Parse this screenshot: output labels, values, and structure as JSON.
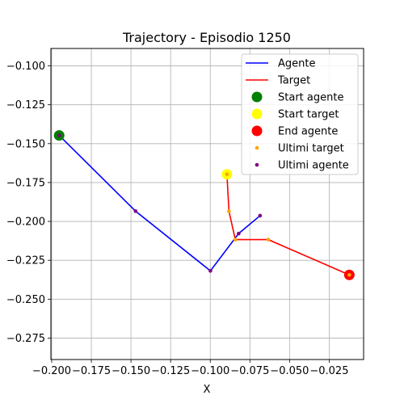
{
  "chart_data": {
    "type": "line",
    "title": "Trajectory - Episodio 1250",
    "xlabel": "X",
    "ylabel": "",
    "xlim": [
      -0.2005,
      -0.0033
    ],
    "ylim": [
      -0.2888,
      -0.0888
    ],
    "xticks": [
      -0.2,
      -0.175,
      -0.15,
      -0.125,
      -0.1,
      -0.075,
      -0.05,
      -0.025
    ],
    "yticks": [
      -0.1,
      -0.125,
      -0.15,
      -0.175,
      -0.2,
      -0.225,
      -0.25,
      -0.275
    ],
    "xtick_labels": [
      "−0.200",
      "−0.175",
      "−0.150",
      "−0.125",
      "−0.100",
      "−0.075",
      "−0.050",
      "−0.025"
    ],
    "ytick_labels": [
      "−0.100",
      "−0.125",
      "−0.150",
      "−0.175",
      "−0.200",
      "−0.225",
      "−0.250",
      "−0.275"
    ],
    "grid": true,
    "legend_position": "top-right",
    "series": [
      {
        "name": "Agente",
        "kind": "line",
        "color": "#0000ff",
        "x": [
          -0.1953,
          -0.1471,
          -0.0999,
          -0.0821,
          -0.0686
        ],
        "y": [
          -0.1447,
          -0.1934,
          -0.2318,
          -0.2078,
          -0.1963
        ]
      },
      {
        "name": "Target",
        "kind": "line",
        "color": "#ff0000",
        "x": [
          -0.0895,
          -0.0882,
          -0.0842,
          -0.0634,
          -0.0123
        ],
        "y": [
          -0.1697,
          -0.1935,
          -0.2117,
          -0.2117,
          -0.2344
        ]
      },
      {
        "name": "Start agente",
        "kind": "marker",
        "color": "#008000",
        "x": [
          -0.1953
        ],
        "y": [
          -0.1447
        ]
      },
      {
        "name": "Start target",
        "kind": "marker",
        "color": "#ffff00",
        "x": [
          -0.0895
        ],
        "y": [
          -0.1697
        ]
      },
      {
        "name": "End agente",
        "kind": "marker",
        "color": "#ff0000",
        "x": [
          -0.0123
        ],
        "y": [
          -0.2344
        ]
      },
      {
        "name": "Ultimi target",
        "kind": "small-marker",
        "color": "#ffa500",
        "x": [
          -0.0895,
          -0.0882,
          -0.0842,
          -0.0634,
          -0.0123
        ],
        "y": [
          -0.1697,
          -0.1935,
          -0.2117,
          -0.2117,
          -0.2344
        ]
      },
      {
        "name": "Ultimi agente",
        "kind": "small-marker",
        "color": "#800080",
        "x": [
          -0.1953,
          -0.1471,
          -0.0999,
          -0.0821,
          -0.0686
        ],
        "y": [
          -0.1447,
          -0.1934,
          -0.2318,
          -0.2078,
          -0.1963
        ]
      }
    ]
  }
}
